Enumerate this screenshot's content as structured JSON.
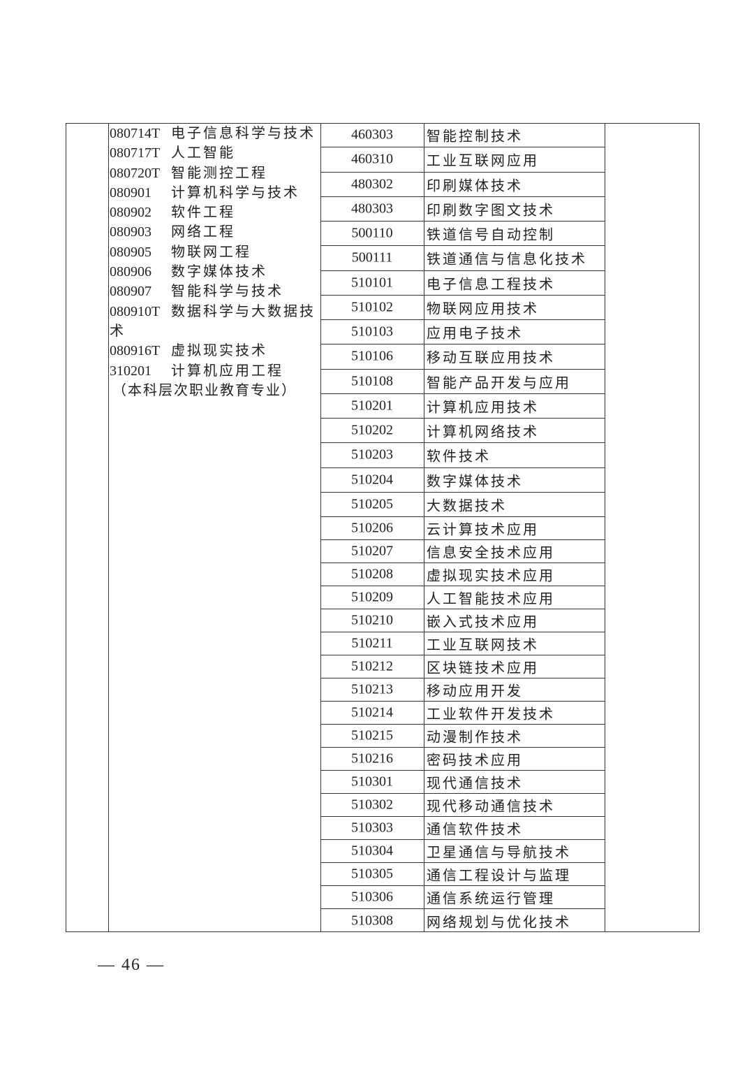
{
  "left_majors": [
    {
      "code": "080714T",
      "name": "电子信息科学与技术"
    },
    {
      "code": "080717T",
      "name": "人工智能"
    },
    {
      "code": "080720T",
      "name": "智能测控工程"
    },
    {
      "code": "080901",
      "name": "计算机科学与技术"
    },
    {
      "code": "080902",
      "name": "软件工程"
    },
    {
      "code": "080903",
      "name": "网络工程"
    },
    {
      "code": "080905",
      "name": "物联网工程"
    },
    {
      "code": "080906",
      "name": "数字媒体技术"
    },
    {
      "code": "080907",
      "name": "智能科学与技术"
    },
    {
      "code": "080910T",
      "name": "数据科学与大数据技术"
    },
    {
      "code": "080916T",
      "name": "虚拟现实技术"
    },
    {
      "code": "310201",
      "name": "计算机应用工程"
    }
  ],
  "left_note": "（本科层次职业教育专业）",
  "right_majors": [
    {
      "code": "460303",
      "name": "智能控制技术"
    },
    {
      "code": "460310",
      "name": "工业互联网应用"
    },
    {
      "code": "480302",
      "name": "印刷媒体技术"
    },
    {
      "code": "480303",
      "name": "印刷数字图文技术"
    },
    {
      "code": "500110",
      "name": "铁道信号自动控制"
    },
    {
      "code": "500111",
      "name": "铁道通信与信息化技术"
    },
    {
      "code": "510101",
      "name": "电子信息工程技术"
    },
    {
      "code": "510102",
      "name": "物联网应用技术"
    },
    {
      "code": "510103",
      "name": "应用电子技术"
    },
    {
      "code": "510106",
      "name": "移动互联应用技术"
    },
    {
      "code": "510108",
      "name": "智能产品开发与应用"
    },
    {
      "code": "510201",
      "name": "计算机应用技术"
    },
    {
      "code": "510202",
      "name": "计算机网络技术"
    },
    {
      "code": "510203",
      "name": "软件技术"
    },
    {
      "code": "510204",
      "name": "数字媒体技术"
    },
    {
      "code": "510205",
      "name": "大数据技术"
    },
    {
      "code": "510206",
      "name": "云计算技术应用"
    },
    {
      "code": "510207",
      "name": "信息安全技术应用"
    },
    {
      "code": "510208",
      "name": "虚拟现实技术应用"
    },
    {
      "code": "510209",
      "name": "人工智能技术应用"
    },
    {
      "code": "510210",
      "name": "嵌入式技术应用"
    },
    {
      "code": "510211",
      "name": "工业互联网技术"
    },
    {
      "code": "510212",
      "name": "区块链技术应用"
    },
    {
      "code": "510213",
      "name": "移动应用开发"
    },
    {
      "code": "510214",
      "name": "工业软件开发技术"
    },
    {
      "code": "510215",
      "name": "动漫制作技术"
    },
    {
      "code": "510216",
      "name": "密码技术应用"
    },
    {
      "code": "510301",
      "name": "现代通信技术"
    },
    {
      "code": "510302",
      "name": "现代移动通信技术"
    },
    {
      "code": "510303",
      "name": "通信软件技术"
    },
    {
      "code": "510304",
      "name": "卫星通信与导航技术"
    },
    {
      "code": "510305",
      "name": "通信工程设计与监理"
    },
    {
      "code": "510306",
      "name": "通信系统运行管理"
    },
    {
      "code": "510308",
      "name": "网络规划与优化技术"
    }
  ],
  "page_number": "— 46 —"
}
